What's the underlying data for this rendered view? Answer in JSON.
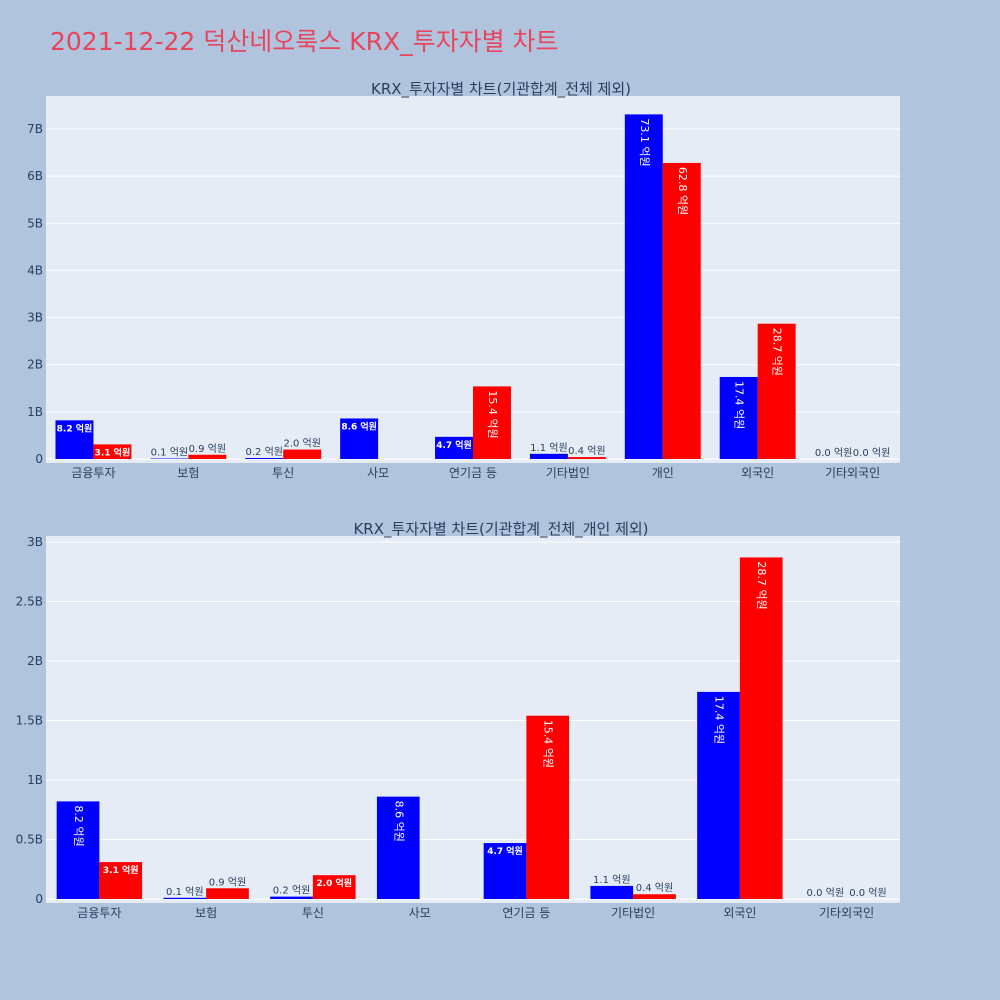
{
  "title": "2021-12-22 덕산네오룩스 KRX_투자자별 차트",
  "colors": {
    "series1": "#0000ff",
    "series2": "#ff0000",
    "plot_bg": "#e5ecf6",
    "page_bg": "#b0c4de",
    "title": "#e8455c"
  },
  "chart_data": [
    {
      "type": "bar",
      "title": "KRX_투자자별 차트(기관합계_전체 제외)",
      "categories": [
        "금융투자",
        "보험",
        "투신",
        "사모",
        "연기금 등",
        "기타법인",
        "개인",
        "외국인",
        "기타외국인"
      ],
      "series": [
        {
          "values": [
            0.82,
            0.01,
            0.02,
            0.86,
            0.47,
            0.11,
            7.31,
            1.74,
            0.0
          ],
          "labels": [
            "8.2 억원",
            "0.1 억원",
            "0.2 억원",
            "8.6 억원",
            "4.7 억원",
            "1.1 억원",
            "73.1 억원",
            "17.4 억원",
            "0.0 억원"
          ]
        },
        {
          "values": [
            0.31,
            0.09,
            0.2,
            0.0,
            1.54,
            0.04,
            6.28,
            2.87,
            0.0
          ],
          "labels": [
            "3.1 억원",
            "0.9 억원",
            "2.0 억원",
            "",
            "15.4 억원",
            "0.4 억원",
            "62.8 억원",
            "28.7 억원",
            "0.0 억원"
          ]
        }
      ],
      "yticks": [
        0,
        1,
        2,
        3,
        4,
        5,
        6,
        7
      ],
      "ytick_labels": [
        "0",
        "1B",
        "2B",
        "3B",
        "4B",
        "5B",
        "6B",
        "7B"
      ],
      "ylim": [
        0,
        7.7
      ],
      "grid": true
    },
    {
      "type": "bar",
      "title": "KRX_투자자별 차트(기관합계_전체_개인 제외)",
      "categories": [
        "금융투자",
        "보험",
        "투신",
        "사모",
        "연기금 등",
        "기타법인",
        "외국인",
        "기타외국인"
      ],
      "series": [
        {
          "values": [
            0.82,
            0.01,
            0.02,
            0.86,
            0.47,
            0.11,
            1.74,
            0.0
          ],
          "labels": [
            "8.2 억원",
            "0.1 억원",
            "0.2 억원",
            "8.6 억원",
            "4.7 억원",
            "1.1 억원",
            "17.4 억원",
            "0.0 억원"
          ]
        },
        {
          "values": [
            0.31,
            0.09,
            0.2,
            0.0,
            1.54,
            0.04,
            2.87,
            0.0
          ],
          "labels": [
            "3.1 억원",
            "0.9 억원",
            "2.0 억원",
            "",
            "15.4 억원",
            "0.4 억원",
            "28.7 억원",
            "0.0 억원"
          ]
        }
      ],
      "yticks": [
        0,
        0.5,
        1,
        1.5,
        2,
        2.5,
        3
      ],
      "ytick_labels": [
        "0",
        "0.5B",
        "1B",
        "1.5B",
        "2B",
        "2.5B",
        "3B"
      ],
      "ylim": [
        0,
        3.05
      ],
      "grid": true
    }
  ]
}
